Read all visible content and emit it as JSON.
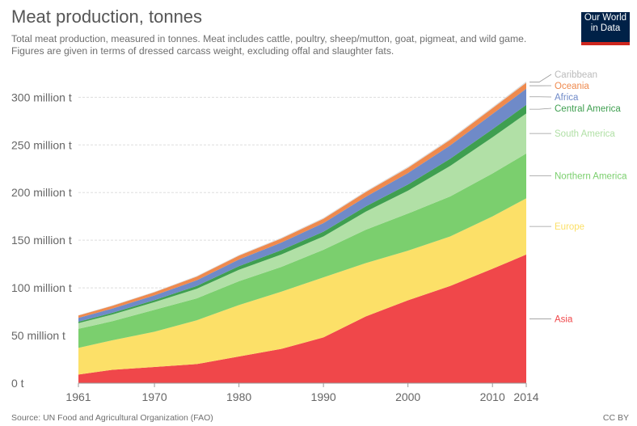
{
  "header": {
    "title": "Meat production, tonnes",
    "subtitle": "Total meat production, measured in tonnes. Meat includes cattle, poultry, sheep/mutton, goat, pigmeat, and wild game. Figures are given in terms of dressed carcass weight, excluding offal and slaughter fats."
  },
  "logo": {
    "line1": "Our World",
    "line2": "in Data"
  },
  "footer": {
    "source": "Source: UN Food and Agricultural Organization (FAO)",
    "license": "CC BY"
  },
  "chart_data": {
    "type": "area",
    "stacked": true,
    "title": "Meat production, tonnes",
    "xlabel": "",
    "ylabel": "",
    "x": [
      1961,
      1965,
      1970,
      1975,
      1980,
      1985,
      1990,
      1995,
      2000,
      2005,
      2010,
      2014
    ],
    "xlim": [
      1961,
      2014
    ],
    "ylim": [
      0,
      330
    ],
    "y_unit": "million t",
    "x_ticks": [
      1961,
      1970,
      1980,
      1990,
      2000,
      2010,
      2014
    ],
    "y_ticks": [
      {
        "value": 0,
        "label": "0 t"
      },
      {
        "value": 50,
        "label": "50 million t"
      },
      {
        "value": 100,
        "label": "100 million t"
      },
      {
        "value": 150,
        "label": "150 million t"
      },
      {
        "value": 200,
        "label": "200 million t"
      },
      {
        "value": 250,
        "label": "250 million t"
      },
      {
        "value": 300,
        "label": "300 million t"
      }
    ],
    "grid": true,
    "legend_position": "right",
    "series": [
      {
        "name": "Asia",
        "color": "#f0474a",
        "values": [
          9,
          14,
          17,
          20,
          28,
          36,
          48,
          70,
          87,
          102,
          120,
          135
        ]
      },
      {
        "name": "Europe",
        "color": "#fce068",
        "values": [
          28,
          31,
          37,
          46,
          54,
          60,
          63,
          56,
          52,
          52,
          55,
          59
        ]
      },
      {
        "name": "Northern America",
        "color": "#7bcf6e",
        "values": [
          20,
          20,
          23,
          23,
          25,
          26,
          29,
          35,
          39,
          42,
          45,
          47
        ]
      },
      {
        "name": "South America",
        "color": "#b1e0a6",
        "values": [
          6,
          7,
          8,
          10,
          12,
          13,
          14,
          19,
          24,
          32,
          38,
          42
        ]
      },
      {
        "name": "Central America",
        "color": "#3f9f50",
        "values": [
          1.5,
          1.8,
          2.2,
          3,
          3.8,
          4.5,
          5,
          5.5,
          6.5,
          7.5,
          8.5,
          9
        ]
      },
      {
        "name": "Africa",
        "color": "#6f8ac8",
        "values": [
          4,
          4.5,
          5,
          6,
          7,
          8,
          9,
          10,
          12,
          14,
          16,
          17
        ]
      },
      {
        "name": "Oceania",
        "color": "#ef8a4e",
        "values": [
          2.5,
          2.8,
          3.2,
          3.8,
          4,
          4.2,
          4.5,
          5,
          5.5,
          5.8,
          6,
          6.3
        ]
      },
      {
        "name": "Caribbean",
        "color": "#dadada",
        "values": [
          0.4,
          0.5,
          0.6,
          0.7,
          0.8,
          0.9,
          1,
          1,
          1.1,
          1.2,
          1.2,
          1.3
        ]
      }
    ]
  }
}
